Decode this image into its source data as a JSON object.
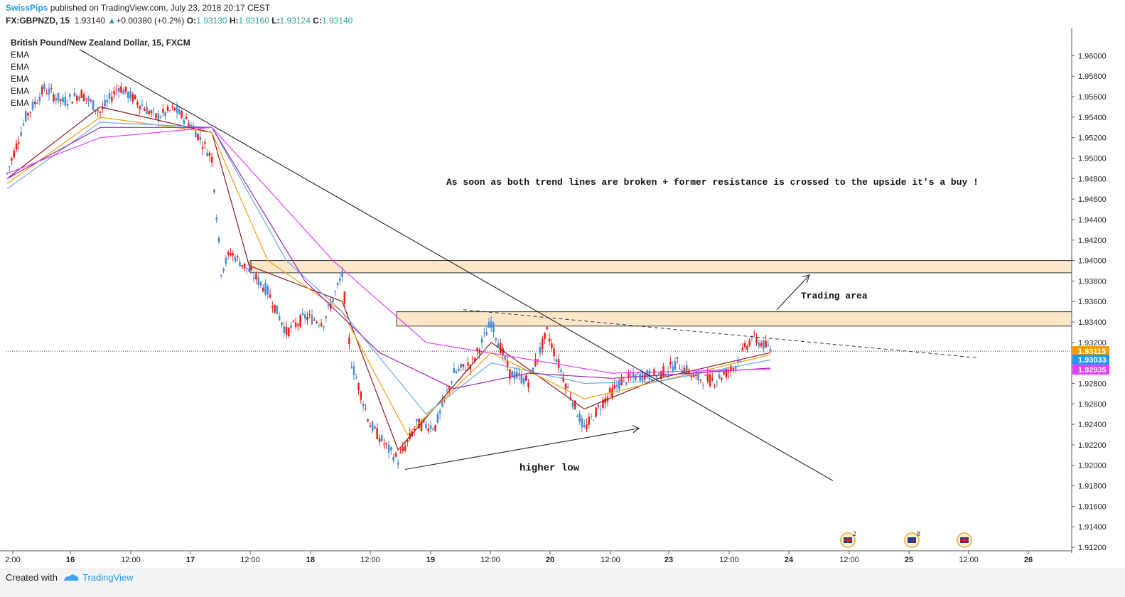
{
  "header": {
    "user": "SwissPips",
    "published": "published on TradingView.com, July 23, 2018 20:17 CEST",
    "symbol": "FX:GBPNZD, 15",
    "last": "1.93140",
    "change": "+0.00380 (+0.2%)",
    "o_label": "O:",
    "o_value": "1.93130",
    "h_label": "H:",
    "h_value": "1.93160",
    "l_label": "L:",
    "l_value": "1.93124",
    "c_label": "C:",
    "c_value": "1.93140"
  },
  "legend": {
    "instrument": "British Pound/New Zealand Dollar, 15, FXCM",
    "indicators": [
      "EMA",
      "EMA",
      "EMA",
      "EMA",
      "EMA"
    ]
  },
  "annotations": {
    "main_note": "As soon as both trend lines are broken + former resistance is crossed to the upside it's a buy !",
    "trading_area": "Trading area",
    "higher_low": "higher low"
  },
  "footer": {
    "created_with": "Created with",
    "brand": "TradingView"
  },
  "events": [
    {
      "flag": "uk-flag-icon",
      "count": "2"
    },
    {
      "flag": "nz-flag-icon",
      "count": "8"
    },
    {
      "flag": "uk-flag-icon",
      "count": ""
    }
  ],
  "colors": {
    "bull": "#4a8bd6",
    "bear": "#e8251c",
    "ema_fast": "#8b1a1a",
    "ema_orange": "#f39c12",
    "ema_blue": "#6aa7e8",
    "ema_purple": "#9c27b0",
    "ema_magenta": "#e040fb",
    "zone_fill": "#fde7c8",
    "price_label": "#ff9800",
    "ema_label": "#2196f3",
    "ema2_label": "#e040fb"
  },
  "chart_data": {
    "type": "candlestick",
    "title": "British Pound/New Zealand Dollar, 15, FXCM",
    "ylim": [
      1.912,
      1.961
    ],
    "yticks": [
      "1.96000",
      "1.95800",
      "1.95600",
      "1.95400",
      "1.95200",
      "1.95000",
      "1.94800",
      "1.94600",
      "1.94400",
      "1.94200",
      "1.94000",
      "1.93800",
      "1.93600",
      "1.93400",
      "1.93200",
      "1.93000",
      "1.92800",
      "1.92600",
      "1.92400",
      "1.92200",
      "1.92000",
      "1.91800",
      "1.91600",
      "1.91400",
      "1.91200"
    ],
    "xticks": [
      "2:00",
      "16",
      "12:00",
      "17",
      "12:00",
      "18",
      "12:00",
      "19",
      "12:00",
      "20",
      "12:00",
      "23",
      "12:00",
      "24",
      "12:00",
      "25",
      "12:00",
      "26"
    ],
    "price_labels": [
      {
        "value": "1.93115",
        "role": "last price"
      },
      {
        "value": "1.93033",
        "role": "EMA"
      },
      {
        "value": "1.92935",
        "role": "EMA"
      }
    ],
    "resistance_zones": [
      [
        1.9388,
        1.94
      ],
      [
        1.9336,
        1.935
      ]
    ],
    "price_path": [
      [
        0,
        1.9485
      ],
      [
        4,
        1.954
      ],
      [
        8,
        1.9568
      ],
      [
        12,
        1.9555
      ],
      [
        16,
        1.9563
      ],
      [
        20,
        1.9545
      ],
      [
        24,
        1.957
      ],
      [
        28,
        1.9555
      ],
      [
        32,
        1.954
      ],
      [
        36,
        1.9548
      ],
      [
        40,
        1.953
      ],
      [
        44,
        1.95
      ],
      [
        46,
        1.939
      ],
      [
        48,
        1.9408
      ],
      [
        52,
        1.939
      ],
      [
        56,
        1.937
      ],
      [
        60,
        1.933
      ],
      [
        64,
        1.9345
      ],
      [
        68,
        1.934
      ],
      [
        72,
        1.9385
      ],
      [
        74,
        1.93
      ],
      [
        78,
        1.924
      ],
      [
        82,
        1.9215
      ],
      [
        84,
        1.9205
      ],
      [
        88,
        1.924
      ],
      [
        92,
        1.9238
      ],
      [
        96,
        1.929
      ],
      [
        100,
        1.93
      ],
      [
        104,
        1.934
      ],
      [
        108,
        1.929
      ],
      [
        112,
        1.9282
      ],
      [
        116,
        1.933
      ],
      [
        120,
        1.928
      ],
      [
        124,
        1.9235
      ],
      [
        128,
        1.9262
      ],
      [
        132,
        1.9282
      ],
      [
        136,
        1.9288
      ],
      [
        140,
        1.9288
      ],
      [
        144,
        1.93
      ],
      [
        148,
        1.9285
      ],
      [
        152,
        1.9283
      ],
      [
        156,
        1.9295
      ],
      [
        160,
        1.9325
      ],
      [
        164,
        1.9313
      ]
    ],
    "ema_periods_note": "",
    "series": [
      {
        "color": "#8b1a1a",
        "values": [
          [
            0,
            1.948
          ],
          [
            20,
            1.955
          ],
          [
            44,
            1.9525
          ],
          [
            52,
            1.9395
          ],
          [
            72,
            1.936
          ],
          [
            84,
            1.9215
          ],
          [
            104,
            1.932
          ],
          [
            124,
            1.9255
          ],
          [
            140,
            1.9285
          ],
          [
            164,
            1.931
          ]
        ]
      },
      {
        "color": "#f39c12",
        "values": [
          [
            0,
            1.9475
          ],
          [
            20,
            1.954
          ],
          [
            44,
            1.9525
          ],
          [
            56,
            1.94
          ],
          [
            72,
            1.935
          ],
          [
            86,
            1.923
          ],
          [
            104,
            1.931
          ],
          [
            124,
            1.9265
          ],
          [
            140,
            1.9282
          ],
          [
            164,
            1.9308
          ]
        ]
      },
      {
        "color": "#6aa7e8",
        "values": [
          [
            0,
            1.947
          ],
          [
            20,
            1.9535
          ],
          [
            44,
            1.953
          ],
          [
            60,
            1.94
          ],
          [
            72,
            1.935
          ],
          [
            90,
            1.925
          ],
          [
            104,
            1.93
          ],
          [
            124,
            1.928
          ],
          [
            140,
            1.9282
          ],
          [
            164,
            1.9303
          ]
        ]
      },
      {
        "color": "#9c27b0",
        "values": [
          [
            0,
            1.948
          ],
          [
            20,
            1.953
          ],
          [
            44,
            1.953
          ],
          [
            64,
            1.938
          ],
          [
            80,
            1.931
          ],
          [
            96,
            1.9275
          ],
          [
            112,
            1.929
          ],
          [
            130,
            1.9285
          ],
          [
            164,
            1.9295
          ]
        ]
      },
      {
        "color": "#e040fb",
        "values": [
          [
            0,
            1.9485
          ],
          [
            20,
            1.952
          ],
          [
            44,
            1.953
          ],
          [
            70,
            1.94
          ],
          [
            90,
            1.932
          ],
          [
            110,
            1.9305
          ],
          [
            130,
            1.929
          ],
          [
            164,
            1.9294
          ]
        ]
      }
    ]
  }
}
